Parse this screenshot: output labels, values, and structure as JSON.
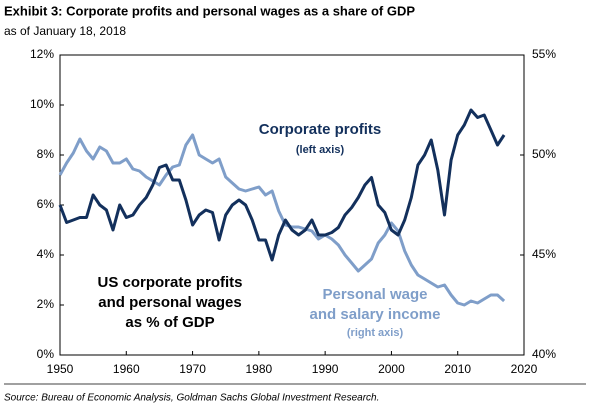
{
  "chart_data": {
    "type": "line",
    "title": "Exhibit 3: Corporate profits and personal wages as a share of GDP",
    "subtitle": "as of January 18, 2018",
    "source": "Source: Bureau of Economic Analysis, Goldman Sachs Global Investment Research.",
    "annotations": {
      "main": [
        "US corporate profits",
        "and personal wages",
        "as % of GDP"
      ],
      "profits": [
        "Corporate profits",
        "(left axis)"
      ],
      "wages": [
        "Personal wage",
        "and salary income",
        "(right axis)"
      ]
    },
    "x": [
      1950,
      1951,
      1952,
      1953,
      1954,
      1955,
      1956,
      1957,
      1958,
      1959,
      1960,
      1961,
      1962,
      1963,
      1964,
      1965,
      1966,
      1967,
      1968,
      1969,
      1970,
      1971,
      1972,
      1973,
      1974,
      1975,
      1976,
      1977,
      1978,
      1979,
      1980,
      1981,
      1982,
      1983,
      1984,
      1985,
      1986,
      1987,
      1988,
      1989,
      1990,
      1991,
      1992,
      1993,
      1994,
      1995,
      1996,
      1997,
      1998,
      1999,
      2000,
      2001,
      2002,
      2003,
      2004,
      2005,
      2006,
      2007,
      2008,
      2009,
      2010,
      2011,
      2012,
      2013,
      2014,
      2015,
      2016,
      2017
    ],
    "series": [
      {
        "name": "Corporate profits",
        "color": "#13305c",
        "values": [
          6.0,
          5.3,
          5.4,
          5.5,
          5.5,
          6.4,
          6.0,
          5.8,
          5.0,
          6.0,
          5.5,
          5.6,
          6.0,
          6.3,
          6.8,
          7.5,
          7.6,
          7.0,
          7.0,
          6.2,
          5.2,
          5.6,
          5.8,
          5.7,
          4.6,
          5.6,
          6.0,
          6.2,
          6.0,
          5.4,
          4.6,
          4.6,
          3.8,
          4.8,
          5.4,
          5.0,
          4.8,
          5.0,
          5.4,
          4.8,
          4.8,
          4.9,
          5.1,
          5.6,
          5.9,
          6.3,
          6.8,
          7.1,
          6.0,
          5.7,
          5.0,
          4.8,
          5.4,
          6.3,
          7.6,
          8.0,
          8.6,
          7.4,
          5.6,
          7.8,
          8.8,
          9.2,
          9.8,
          9.5,
          9.6,
          9.0,
          8.4,
          8.8
        ]
      },
      {
        "name": "Personal wage and salary income",
        "color": "#7f9ec9",
        "axis": "y2",
        "values": [
          49.0,
          49.6,
          50.1,
          50.8,
          50.2,
          49.8,
          50.4,
          50.2,
          49.6,
          49.6,
          49.8,
          49.3,
          49.2,
          48.9,
          48.7,
          48.5,
          49.0,
          49.4,
          49.5,
          50.5,
          51.0,
          50.0,
          49.8,
          49.6,
          49.8,
          48.9,
          48.6,
          48.3,
          48.2,
          48.3,
          48.4,
          48.0,
          48.2,
          47.2,
          46.5,
          46.4,
          46.4,
          46.3,
          46.2,
          45.8,
          46.0,
          45.8,
          45.5,
          45.0,
          44.6,
          44.2,
          44.5,
          44.8,
          45.6,
          46.0,
          46.6,
          46.2,
          45.2,
          44.5,
          44.0,
          43.8,
          43.6,
          43.4,
          43.5,
          43.0,
          42.6,
          42.5,
          42.7,
          42.6,
          42.8,
          43.0,
          43.0,
          42.7
        ]
      }
    ],
    "xlim": [
      1950,
      2020
    ],
    "xticks": [
      1950,
      1960,
      1970,
      1980,
      1990,
      2000,
      2010,
      2020
    ],
    "ylim": [
      0,
      12
    ],
    "yticks": [
      {
        "value": 0,
        "label": "0%"
      },
      {
        "value": 2,
        "label": "2%"
      },
      {
        "value": 4,
        "label": "4%"
      },
      {
        "value": 6,
        "label": "6%"
      },
      {
        "value": 8,
        "label": "8%"
      },
      {
        "value": 10,
        "label": "10%"
      },
      {
        "value": 12,
        "label": "12%"
      }
    ],
    "y2lim": [
      40,
      55
    ],
    "y2ticks": [
      {
        "value": 40,
        "label": "40%"
      },
      {
        "value": 45,
        "label": "45%"
      },
      {
        "value": 50,
        "label": "50%"
      },
      {
        "value": 55,
        "label": "55%"
      }
    ]
  }
}
